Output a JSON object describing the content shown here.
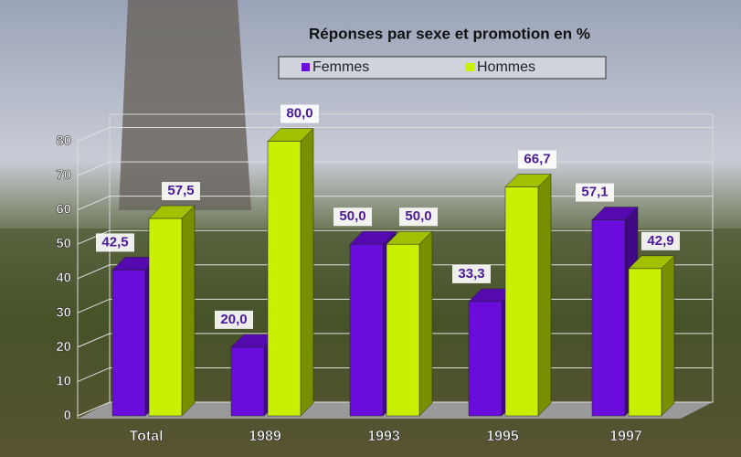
{
  "chart_data": {
    "type": "bar",
    "title": "Réponses par sexe et promotion en %",
    "categories": [
      "Total",
      "1989",
      "1993",
      "1995",
      "1997"
    ],
    "series": [
      {
        "name": "Femmes",
        "color": "#6a0ddc",
        "values": [
          42.5,
          20.0,
          50.0,
          33.3,
          57.1
        ],
        "value_labels": [
          "42,5",
          "20,0",
          "50,0",
          "33,3",
          "57,1"
        ]
      },
      {
        "name": "Hommes",
        "color": "#c8f000",
        "values": [
          57.5,
          80.0,
          50.0,
          66.7,
          42.9
        ],
        "value_labels": [
          "57,5",
          "80,0",
          "50,0",
          "66,7",
          "42,9"
        ]
      }
    ],
    "ylim": [
      0,
      90
    ],
    "yticks": [
      0,
      10,
      20,
      30,
      40,
      50,
      60,
      70,
      80
    ],
    "grid": true,
    "legend": "top"
  }
}
